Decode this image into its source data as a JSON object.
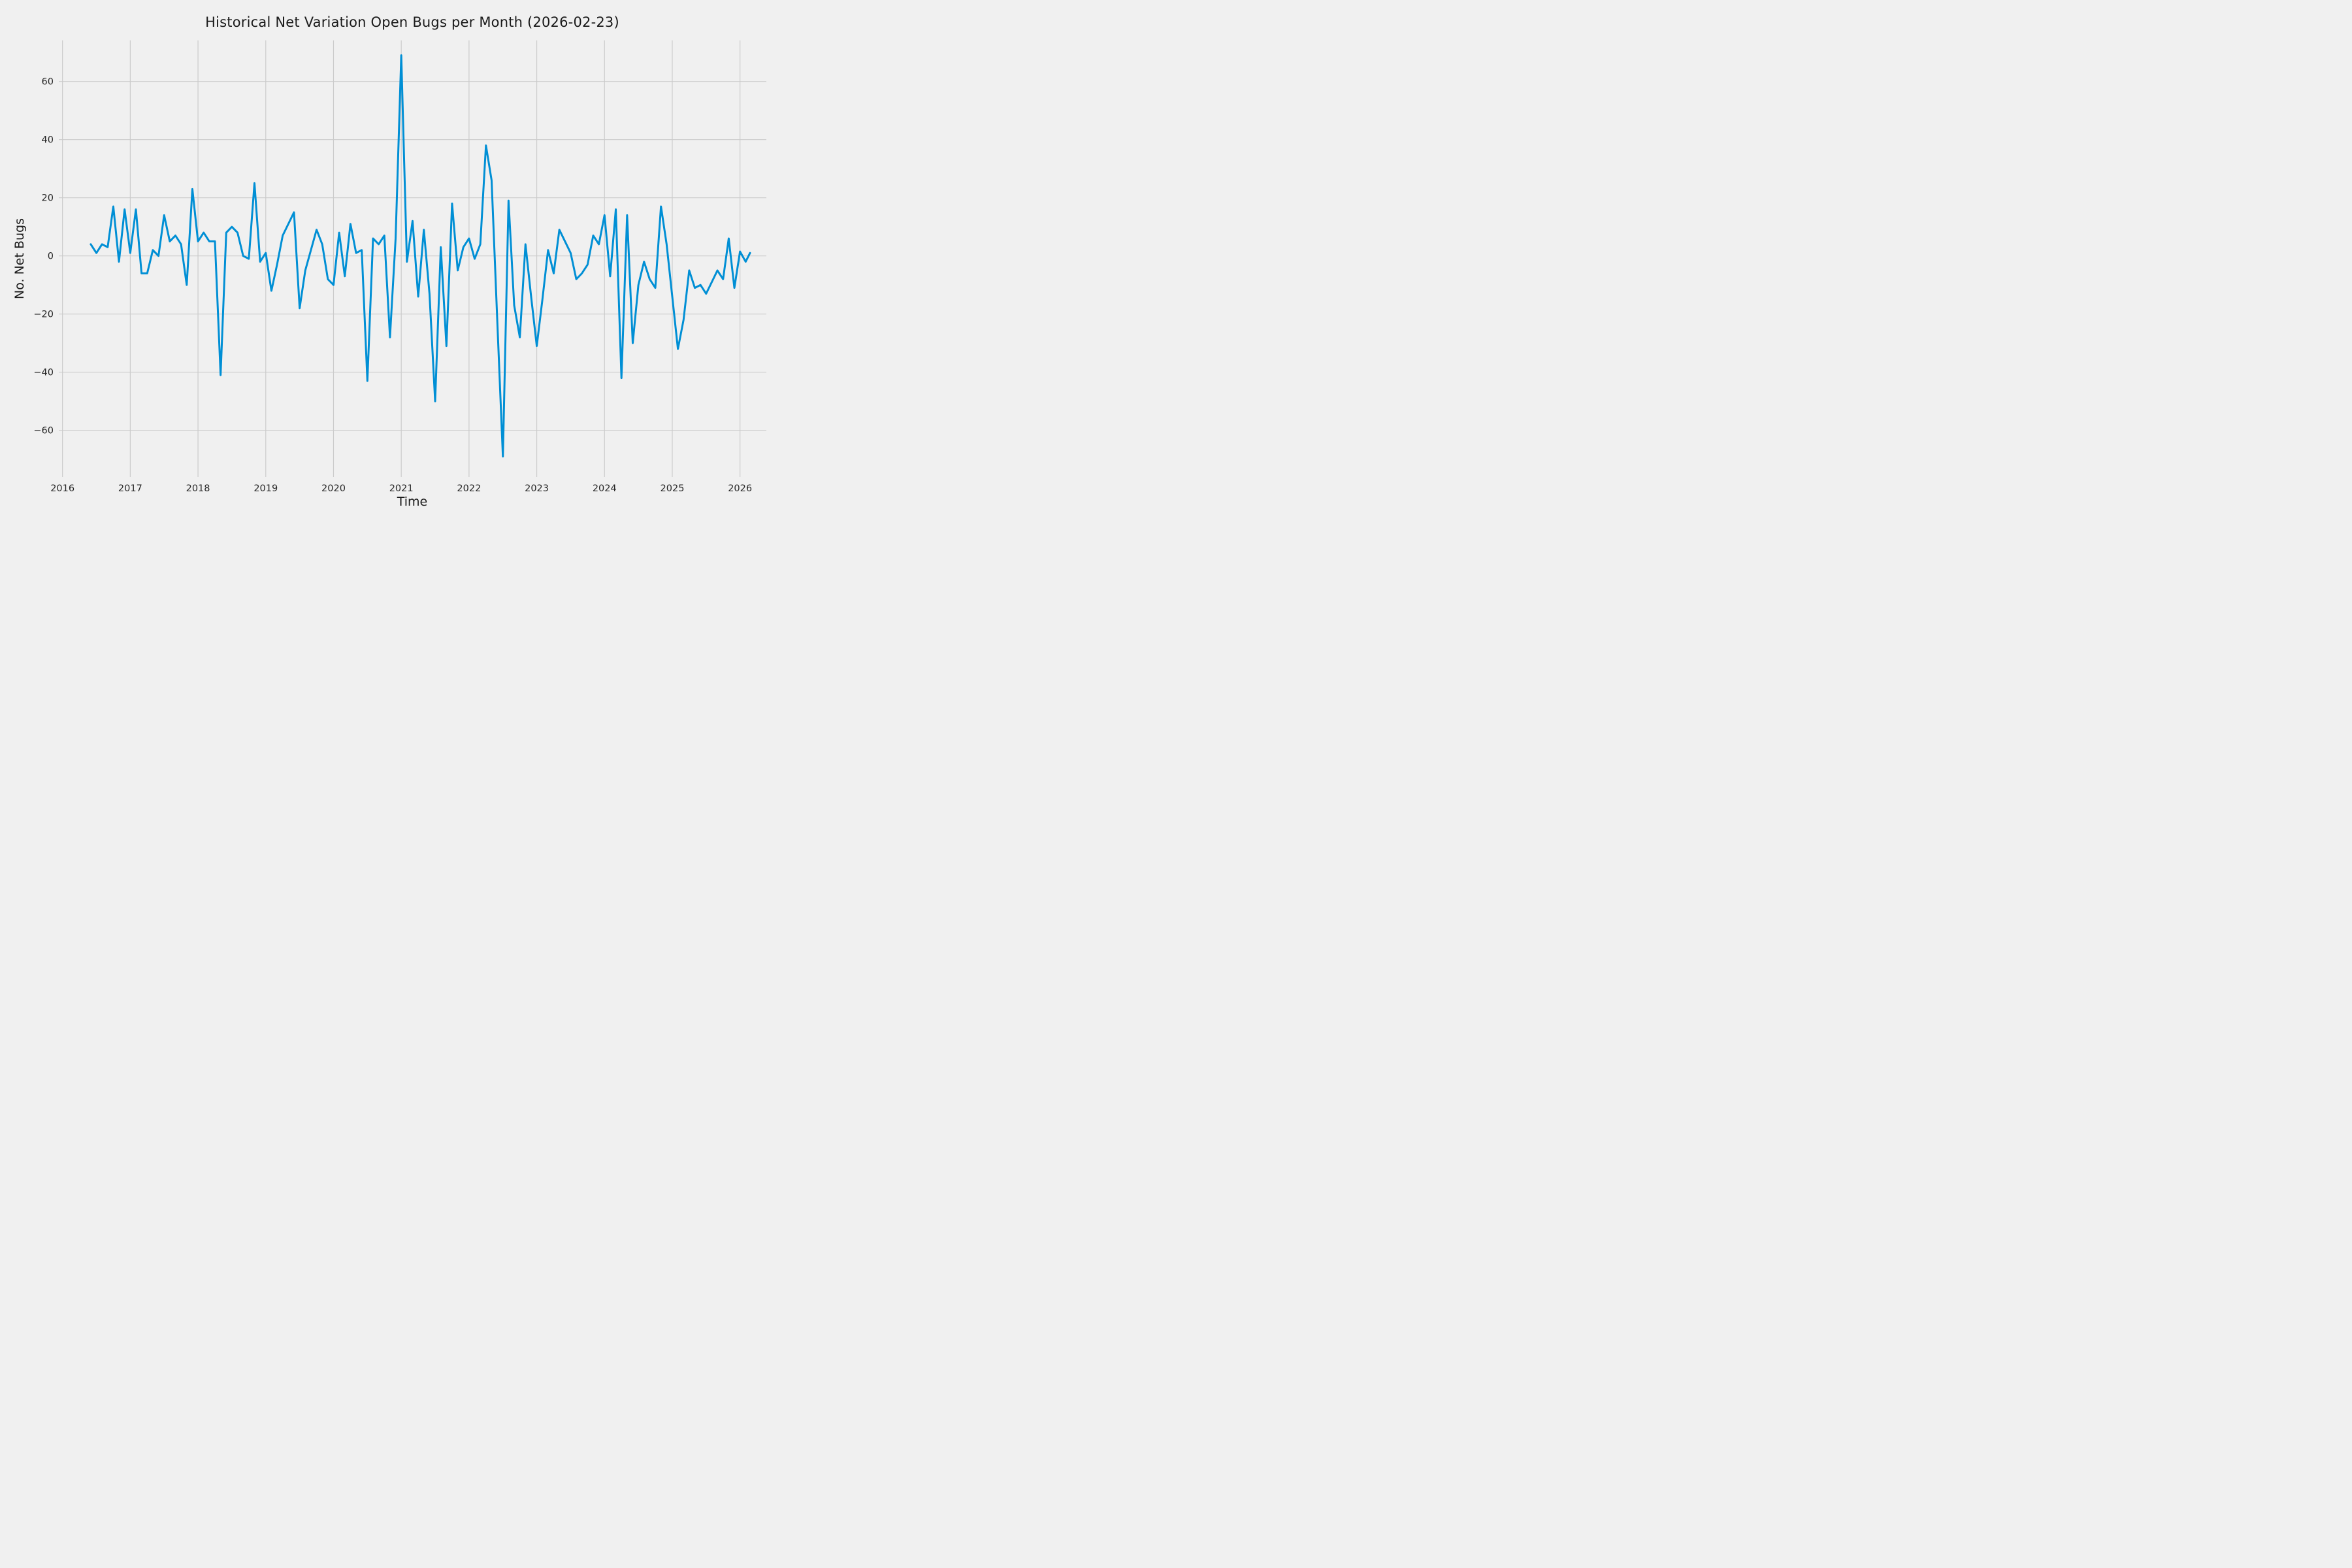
{
  "figure": {
    "title": "Historical Net Variation Open Bugs per Month (2026-02-23)",
    "xlabel": "Time",
    "ylabel": "No. Net Bugs"
  },
  "chart_data": {
    "type": "line",
    "title": "Historical Net Variation Open Bugs per Month (2026-02-23)",
    "xlabel": "Time",
    "ylabel": "No. Net Bugs",
    "grid": true,
    "legend_position": "none",
    "x_ticks": [
      2016,
      2017,
      2018,
      2019,
      2020,
      2021,
      2022,
      2023,
      2024,
      2025,
      2026
    ],
    "y_ticks": [
      -60,
      -40,
      -20,
      0,
      20,
      40,
      60
    ],
    "y_tick_labels": [
      "−60",
      "−40",
      "−20",
      "0",
      "20",
      "40",
      "60"
    ],
    "xlim": [
      2015.95,
      2026.39
    ],
    "ylim": [
      -76,
      74
    ],
    "start_month": "2016-06",
    "monthly_values": [
      4,
      1,
      4,
      3,
      17,
      -2,
      16,
      1,
      16,
      -6,
      -6,
      2,
      0,
      14,
      5,
      7,
      4,
      -10,
      23,
      5,
      8,
      5,
      5,
      -41,
      8,
      10,
      8,
      0,
      -1,
      25,
      -2,
      1,
      -12,
      -3,
      7,
      11,
      15,
      -18,
      -5,
      2,
      9,
      4,
      -8,
      -10,
      8,
      -7,
      11,
      1,
      2,
      -43,
      6,
      4,
      7,
      -28,
      6,
      69,
      -2,
      12,
      -14,
      9,
      -13,
      -50,
      3,
      -31,
      18,
      -5,
      3,
      6,
      -1,
      4,
      38,
      26,
      -22,
      -69,
      19,
      -17,
      -28,
      4,
      -14,
      -31,
      -15,
      2,
      -6,
      9,
      5,
      1,
      -8,
      -6,
      -3,
      7,
      4,
      14,
      -7,
      16,
      -42,
      14,
      -30,
      -10,
      -2,
      -8,
      -11,
      17,
      4,
      -14,
      -32,
      -22,
      -5,
      -11,
      -10,
      -13,
      -9,
      -5,
      -8,
      6,
      -11,
      1.5,
      -2
    ],
    "final_partial_point": {
      "x": 2026.148,
      "y": 1,
      "date_label": "2026-02-23"
    },
    "style": {
      "background_color": "#f0f0f0",
      "grid_color": "#cbcbcb",
      "line_color": "#008fd5",
      "text_color": "#262626",
      "line_width": 3
    }
  }
}
